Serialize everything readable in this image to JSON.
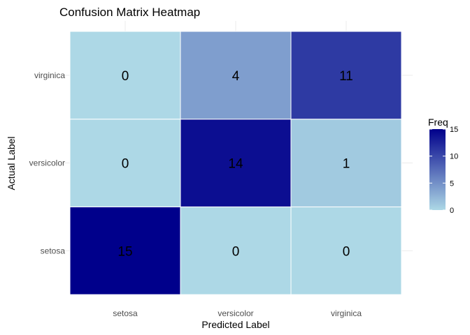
{
  "chart_data": {
    "type": "heatmap",
    "title": "Confusion Matrix Heatmap",
    "xlabel": "Predicted Label",
    "ylabel": "Actual Label",
    "x_categories": [
      "setosa",
      "versicolor",
      "virginica"
    ],
    "y_categories": [
      "setosa",
      "versicolor",
      "virginica"
    ],
    "cells": [
      {
        "actual": "setosa",
        "predicted": "setosa",
        "value": 15
      },
      {
        "actual": "setosa",
        "predicted": "versicolor",
        "value": 0
      },
      {
        "actual": "setosa",
        "predicted": "virginica",
        "value": 0
      },
      {
        "actual": "versicolor",
        "predicted": "setosa",
        "value": 0
      },
      {
        "actual": "versicolor",
        "predicted": "versicolor",
        "value": 14
      },
      {
        "actual": "versicolor",
        "predicted": "virginica",
        "value": 1
      },
      {
        "actual": "virginica",
        "predicted": "setosa",
        "value": 0
      },
      {
        "actual": "virginica",
        "predicted": "versicolor",
        "value": 4
      },
      {
        "actual": "virginica",
        "predicted": "virginica",
        "value": 11
      }
    ],
    "color_scale": {
      "low": "#add8e6",
      "high": "#00008b",
      "min": 0,
      "max": 15
    },
    "legend": {
      "title": "Freq",
      "ticks": [
        0,
        5,
        10,
        15
      ],
      "placement": "right"
    },
    "grid": true
  }
}
